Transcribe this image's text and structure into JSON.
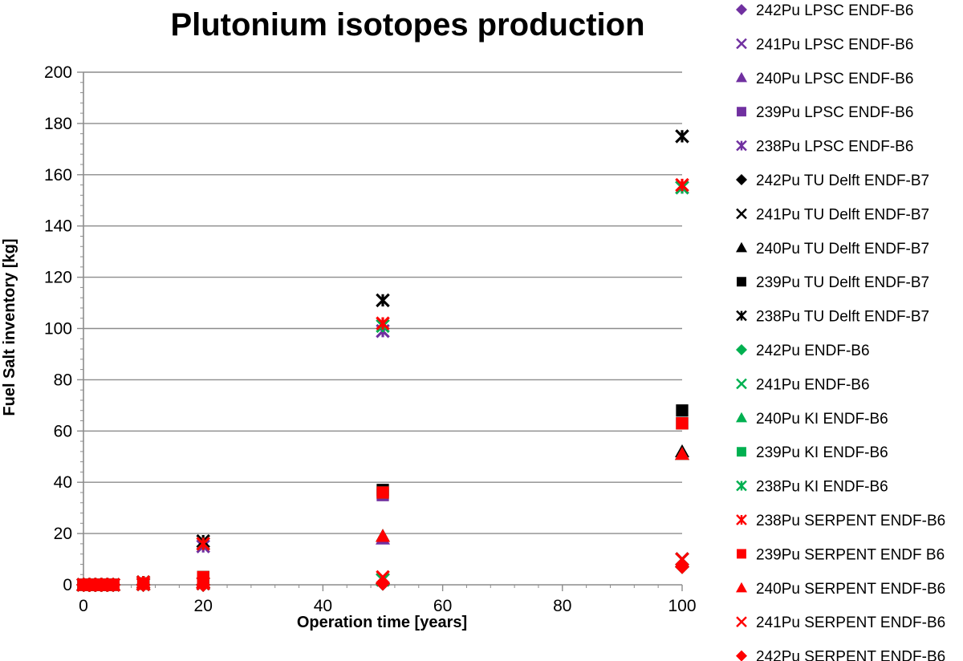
{
  "chart_data": {
    "type": "scatter",
    "title": "Plutonium isotopes production",
    "xlabel": "Operation time [years]",
    "ylabel": "Fuel Salt inventory [kg]",
    "xlim": [
      0,
      100
    ],
    "ylim": [
      0,
      200
    ],
    "xticks": [
      0,
      20,
      40,
      60,
      80,
      100
    ],
    "yticks": [
      0,
      20,
      40,
      60,
      80,
      100,
      120,
      140,
      160,
      180,
      200
    ],
    "grid": "horizontal",
    "legend_position": "right",
    "series": [
      {
        "name": "242Pu LPSC ENDF-B6",
        "color": "#7030a0",
        "marker": "diamond",
        "x": [
          0,
          1,
          2,
          3,
          4,
          5,
          10,
          20,
          50,
          100
        ],
        "y": [
          0,
          0,
          0,
          0,
          0,
          0,
          0,
          0,
          0.5,
          7
        ]
      },
      {
        "name": "241Pu LPSC ENDF-B6",
        "color": "#7030a0",
        "marker": "x",
        "x": [
          0,
          1,
          2,
          3,
          4,
          5,
          10,
          20,
          50,
          100
        ],
        "y": [
          0,
          0,
          0,
          0,
          0,
          0,
          0.2,
          0.5,
          2,
          10
        ]
      },
      {
        "name": "240Pu LPSC ENDF-B6",
        "color": "#7030a0",
        "marker": "triangle",
        "x": [
          0,
          1,
          2,
          3,
          4,
          5,
          10,
          20,
          50,
          100
        ],
        "y": [
          0,
          0,
          0,
          0,
          0,
          0,
          0.3,
          1,
          18,
          51
        ]
      },
      {
        "name": "239Pu LPSC ENDF-B6",
        "color": "#7030a0",
        "marker": "square",
        "x": [
          0,
          1,
          2,
          3,
          4,
          5,
          10,
          20,
          50,
          100
        ],
        "y": [
          0,
          0,
          0,
          0,
          0,
          0,
          0.5,
          3,
          35,
          63
        ]
      },
      {
        "name": "238Pu LPSC ENDF-B6",
        "color": "#7030a0",
        "marker": "star",
        "x": [
          0,
          1,
          2,
          3,
          4,
          5,
          10,
          20,
          50,
          100
        ],
        "y": [
          0,
          0,
          0,
          0,
          0,
          0,
          1,
          15,
          99,
          155
        ]
      },
      {
        "name": "242Pu TU Delft ENDF-B7",
        "color": "#000000",
        "marker": "diamond",
        "x": [
          0,
          1,
          2,
          3,
          4,
          5,
          10,
          20,
          50,
          100
        ],
        "y": [
          0,
          0,
          0,
          0,
          0,
          0,
          0,
          0,
          0.5,
          7
        ]
      },
      {
        "name": "241Pu TU Delft ENDF-B7",
        "color": "#000000",
        "marker": "x",
        "x": [
          0,
          1,
          2,
          3,
          4,
          5,
          10,
          20,
          50,
          100
        ],
        "y": [
          0,
          0,
          0,
          0,
          0,
          0,
          0.2,
          0.5,
          2,
          10
        ]
      },
      {
        "name": "240Pu TU Delft ENDF-B7",
        "color": "#000000",
        "marker": "triangle",
        "x": [
          0,
          1,
          2,
          3,
          4,
          5,
          10,
          20,
          50,
          100
        ],
        "y": [
          0,
          0,
          0,
          0,
          0,
          0,
          0.3,
          1,
          19,
          52
        ]
      },
      {
        "name": "239Pu TU Delft ENDF-B7",
        "color": "#000000",
        "marker": "square",
        "x": [
          0,
          1,
          2,
          3,
          4,
          5,
          10,
          20,
          50,
          100
        ],
        "y": [
          0,
          0,
          0,
          0,
          0,
          0,
          0.5,
          3,
          37,
          68
        ]
      },
      {
        "name": "238Pu TU Delft ENDF-B7",
        "color": "#000000",
        "marker": "star",
        "x": [
          0,
          1,
          2,
          3,
          4,
          5,
          10,
          20,
          50,
          100
        ],
        "y": [
          0,
          0,
          0,
          0,
          0,
          0,
          1,
          17,
          111,
          175
        ]
      },
      {
        "name": "242Pu ENDF-B6",
        "color": "#00b050",
        "marker": "diamond",
        "x": [
          0,
          1,
          2,
          3,
          4,
          5,
          10,
          20,
          50,
          100
        ],
        "y": [
          0,
          0,
          0,
          0,
          0,
          0,
          0,
          0,
          0.5,
          7
        ]
      },
      {
        "name": "241Pu ENDF-B6",
        "color": "#00b050",
        "marker": "x",
        "x": [
          0,
          1,
          2,
          3,
          4,
          5,
          10,
          20,
          50,
          100
        ],
        "y": [
          0,
          0,
          0,
          0,
          0,
          0,
          0.2,
          0.5,
          2,
          10
        ]
      },
      {
        "name": "240Pu KI ENDF-B6",
        "color": "#00b050",
        "marker": "triangle",
        "x": [
          0,
          1,
          2,
          3,
          4,
          5,
          10,
          20,
          50,
          100
        ],
        "y": [
          0,
          0,
          0,
          0,
          0,
          0,
          0.3,
          1,
          19,
          51
        ]
      },
      {
        "name": "239Pu KI ENDF-B6",
        "color": "#00b050",
        "marker": "square",
        "x": [
          0,
          1,
          2,
          3,
          4,
          5,
          10,
          20,
          50,
          100
        ],
        "y": [
          0,
          0,
          0,
          0,
          0,
          0,
          0.5,
          3,
          36,
          63
        ]
      },
      {
        "name": "238Pu KI ENDF-B6",
        "color": "#00b050",
        "marker": "star",
        "x": [
          0,
          1,
          2,
          3,
          4,
          5,
          10,
          20,
          50,
          100
        ],
        "y": [
          0,
          0,
          0,
          0,
          0,
          0,
          1,
          16,
          101,
          155
        ]
      },
      {
        "name": "238Pu SERPENT ENDF-B6",
        "color": "#ff0000",
        "marker": "star",
        "x": [
          0,
          1,
          2,
          3,
          4,
          5,
          10,
          20,
          50,
          100
        ],
        "y": [
          0,
          0,
          0,
          0,
          0,
          0,
          1,
          16,
          102,
          156
        ]
      },
      {
        "name": "239Pu SERPENT ENDF B6",
        "color": "#ff0000",
        "marker": "square",
        "x": [
          0,
          1,
          2,
          3,
          4,
          5,
          10,
          20,
          50,
          100
        ],
        "y": [
          0,
          0,
          0,
          0,
          0,
          0,
          0.5,
          3,
          36,
          63
        ]
      },
      {
        "name": "240Pu SERPENT ENDF-B6",
        "color": "#ff0000",
        "marker": "triangle",
        "x": [
          0,
          1,
          2,
          3,
          4,
          5,
          10,
          20,
          50,
          100
        ],
        "y": [
          0,
          0,
          0,
          0,
          0,
          0,
          0.3,
          1,
          19,
          51
        ]
      },
      {
        "name": "241Pu SERPENT ENDF-B6",
        "color": "#ff0000",
        "marker": "x",
        "x": [
          0,
          1,
          2,
          3,
          4,
          5,
          10,
          20,
          50,
          100
        ],
        "y": [
          0,
          0,
          0,
          0,
          0,
          0,
          0.2,
          0.5,
          3,
          10
        ]
      },
      {
        "name": "242Pu SERPENT ENDF-B6",
        "color": "#ff0000",
        "marker": "diamond",
        "x": [
          0,
          1,
          2,
          3,
          4,
          5,
          10,
          20,
          50,
          100
        ],
        "y": [
          0,
          0,
          0,
          0,
          0,
          0,
          0,
          0,
          0.5,
          7
        ]
      }
    ]
  }
}
